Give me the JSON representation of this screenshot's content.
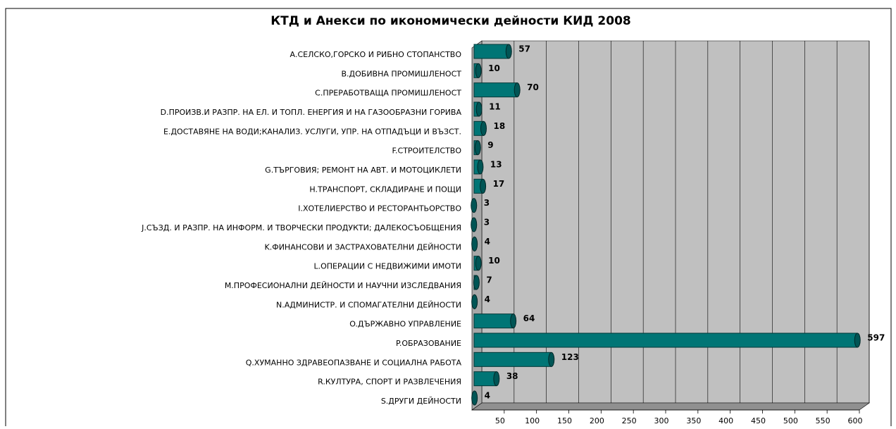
{
  "chart_data": {
    "type": "bar",
    "orientation": "horizontal",
    "title": "КТД и Анекси по икономически дейности КИД 2008",
    "categories": [
      "А.СЕЛСКО,ГОРСКО И РИБНО СТОПАНСТВО",
      "B.ДОБИВНА ПРОМИШЛЕНОСТ",
      "C.ПРЕРАБОТВАЩА ПРОМИШЛЕНОСТ",
      "D.ПРОИЗВ.И РАЗПР. НА ЕЛ. И ТОПЛ. ЕНЕРГИЯ И НА ГАЗООБРАЗНИ ГОРИВА",
      "E.ДОСТАВЯНЕ НА ВОДИ;КАНАЛИЗ. УСЛУГИ, УПР. НА ОТПАДЪЦИ И ВЪЗСТ.",
      "F.СТРОИТЕЛСТВО",
      "G.ТЪРГОВИЯ; РЕМОНТ НА АВТ. И МОТОЦИКЛЕТИ",
      "H.ТРАНСПОРТ, СКЛАДИРАНЕ И ПОЩИ",
      "I.ХОТЕЛИЕРСТВО И РЕСТОРАНТЬОРСТВО",
      "J.СЪЗД. И РАЗПР. НА ИНФОРМ. И ТВОРЧЕСКИ ПРОДУКТИ; ДАЛЕКОСЪОБЩЕНИЯ",
      "K.ФИНАНСОВИ И ЗАСТРАХОВАТЕЛНИ ДЕЙНОСТИ",
      "L.ОПЕРАЦИИ С НЕДВИЖИМИ ИМОТИ",
      "M.ПРОФЕСИОНАЛНИ ДЕЙНОСТИ И НАУЧНИ ИЗСЛЕДВАНИЯ",
      "N.АДМИНИСТР. И СПОМАГАТЕЛНИ ДЕЙНОСТИ",
      "O.ДЪРЖАВНО УПРАВЛЕНИЕ",
      "P.ОБРАЗОВАНИЕ",
      "Q.ХУМАННО ЗДРАВЕОПАЗВАНЕ И СОЦИАЛНА РАБОТА",
      "R.КУЛТУРА, СПОРТ И РАЗВЛЕЧЕНИЯ",
      "S.ДРУГИ ДЕЙНОСТИ"
    ],
    "values": [
      57,
      10,
      70,
      11,
      18,
      9,
      13,
      17,
      3,
      3,
      4,
      10,
      7,
      4,
      64,
      597,
      123,
      38,
      4
    ],
    "color": "#007575",
    "xlim": [
      0,
      600
    ],
    "xticks": [
      50,
      100,
      150,
      200,
      250,
      300,
      350,
      400,
      450,
      500,
      550,
      600
    ],
    "grid": true
  }
}
